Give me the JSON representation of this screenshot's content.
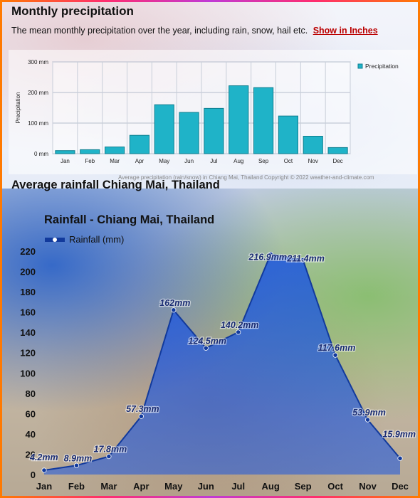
{
  "section1": {
    "title": "Monthly precipitation",
    "description": "The mean monthly precipitation over the year, including rain, snow, hail etc.",
    "link_label": "Show in Inches",
    "caption": "Average precipitation (rain/snow) in Chiang Mai, Thailand   Copyright © 2022  weather-and-climate.com"
  },
  "section2": {
    "title": "Average rainfall Chiang Mai, Thailand"
  },
  "colors": {
    "bar_fill": "#1fb3c8",
    "bar_stroke": "#0f7f90",
    "area_fill": "#1a55e0",
    "line": "#123a9c"
  },
  "chart_data": [
    {
      "type": "bar",
      "categories": [
        "Jan",
        "Feb",
        "Mar",
        "Apr",
        "May",
        "Jun",
        "Jul",
        "Aug",
        "Sep",
        "Oct",
        "Nov",
        "Dec"
      ],
      "series": [
        {
          "name": "Precipitation",
          "values": [
            10,
            13,
            22,
            60,
            160,
            135,
            148,
            222,
            216,
            123,
            57,
            20
          ]
        }
      ],
      "ylabel": "Precipitation",
      "ylim": [
        0,
        300
      ],
      "yticks": [
        0,
        100,
        200,
        300
      ],
      "ytick_labels": [
        "0 mm",
        "100 mm",
        "200 mm",
        "300 mm"
      ],
      "grid": true,
      "legend": "top-right"
    },
    {
      "type": "area",
      "title": "Rainfall - Chiang Mai, Thailand",
      "categories": [
        "Jan",
        "Feb",
        "Mar",
        "Apr",
        "May",
        "Jun",
        "Jul",
        "Aug",
        "Sep",
        "Oct",
        "Nov",
        "Dec"
      ],
      "series": [
        {
          "name": "Rainfall (mm)",
          "values": [
            4.2,
            8.9,
            17.8,
            57.3,
            162,
            124.5,
            140.2,
            216.9,
            211.4,
            117.6,
            53.9,
            15.9
          ]
        }
      ],
      "data_labels": [
        "4.2mm",
        "8.9mm",
        "17.8mm",
        "57.3mm",
        "162mm",
        "124.5mm",
        "140.2mm",
        "216.9mm",
        "211.4mm",
        "117.6mm",
        "53.9mm",
        "15.9mm"
      ],
      "ylim": [
        0,
        220
      ],
      "yticks": [
        0,
        20,
        40,
        60,
        80,
        100,
        120,
        140,
        160,
        180,
        200,
        220
      ],
      "ytick_labels": [
        "0",
        "20",
        "40",
        "60",
        "80",
        "100",
        "120",
        "140",
        "160",
        "180",
        "200",
        "220"
      ],
      "grid": false,
      "legend": "top-left"
    }
  ]
}
